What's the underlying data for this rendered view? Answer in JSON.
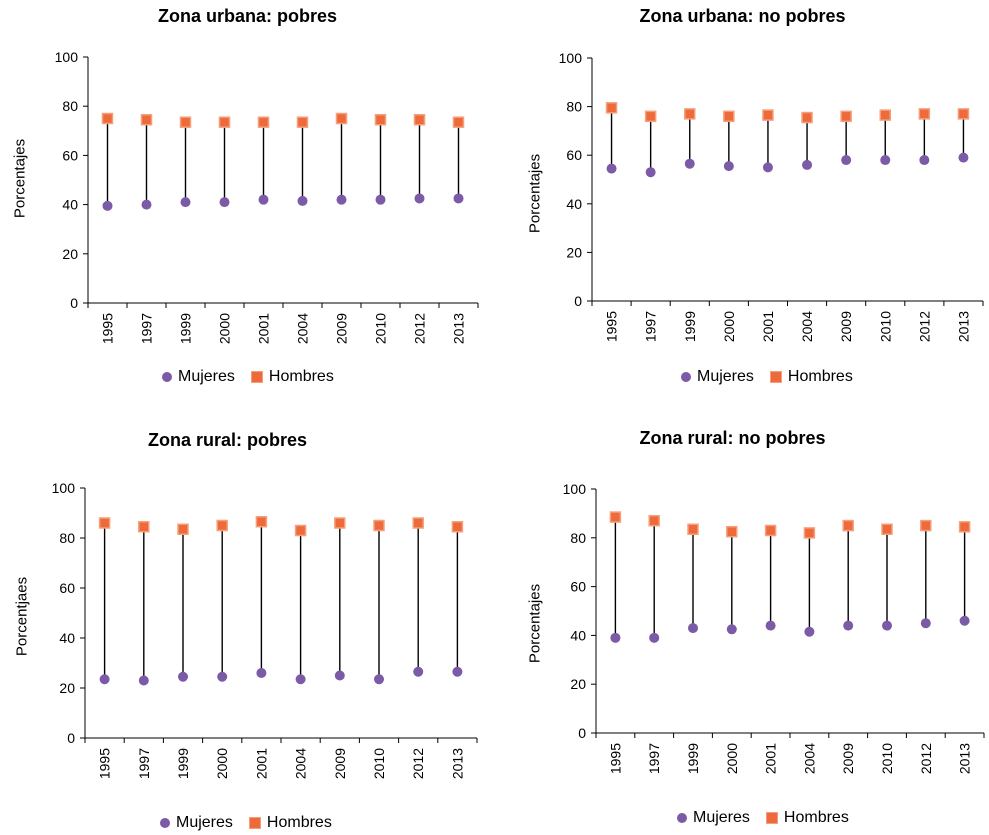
{
  "colors": {
    "mujeres": "#7b5aa6",
    "hombres": "#ef6a3a",
    "hombres_border": "#f5a07c",
    "axis": "#000000"
  },
  "chart_data": [
    {
      "type": "scatter",
      "title": "Zona urbana: pobres",
      "ylabel": "Porcentajes",
      "ylim": [
        0,
        100
      ],
      "yticks": [
        "0",
        "20",
        "40",
        "60",
        "80",
        "100"
      ],
      "categories": [
        "1995",
        "1997",
        "1999",
        "2000",
        "2001",
        "2004",
        "2009",
        "2010",
        "2012",
        "2013"
      ],
      "series": [
        {
          "name": "Mujeres",
          "values": [
            39.5,
            40,
            41,
            41,
            42,
            41.5,
            42,
            42,
            42.5,
            42.5
          ]
        },
        {
          "name": "Hombres",
          "values": [
            75,
            74.5,
            73.5,
            73.5,
            73.5,
            73.5,
            75,
            74.5,
            74.5,
            73.5
          ]
        }
      ],
      "legend_position": "bottom"
    },
    {
      "type": "scatter",
      "title": "Zona urbana: no pobres",
      "ylabel": "Porcentajes",
      "ylim": [
        0,
        100
      ],
      "yticks": [
        "0",
        "20",
        "40",
        "60",
        "80",
        "100"
      ],
      "categories": [
        "1995",
        "1997",
        "1999",
        "2000",
        "2001",
        "2004",
        "2009",
        "2010",
        "2012",
        "2013"
      ],
      "series": [
        {
          "name": "Mujeres",
          "values": [
            54.5,
            53,
            56.5,
            55.5,
            55,
            56,
            58,
            58,
            58,
            59
          ]
        },
        {
          "name": "Hombres",
          "values": [
            79.5,
            76,
            77,
            76,
            76.5,
            75.5,
            76,
            76.5,
            77,
            77
          ]
        }
      ],
      "legend_position": "bottom"
    },
    {
      "type": "scatter",
      "title": "Zona rural: pobres",
      "ylabel": "Porcentjaes",
      "ylim": [
        0,
        100
      ],
      "yticks": [
        "0",
        "20",
        "40",
        "60",
        "80",
        "100"
      ],
      "categories": [
        "1995",
        "1997",
        "1999",
        "2000",
        "2001",
        "2004",
        "2009",
        "2010",
        "2012",
        "2013"
      ],
      "series": [
        {
          "name": "Mujeres",
          "values": [
            23.5,
            23,
            24.5,
            24.5,
            26,
            23.5,
            25,
            23.5,
            26.5,
            26.5
          ]
        },
        {
          "name": "Hombres",
          "values": [
            86,
            84.5,
            83.5,
            85,
            86.5,
            83,
            86,
            85,
            86,
            84.5
          ]
        }
      ],
      "legend_position": "bottom"
    },
    {
      "type": "scatter",
      "title": "Zona rural: no pobres",
      "ylabel": "Porcentajes",
      "ylim": [
        0,
        100
      ],
      "yticks": [
        "0",
        "20",
        "40",
        "60",
        "80",
        "100"
      ],
      "categories": [
        "1995",
        "1997",
        "1999",
        "2000",
        "2001",
        "2004",
        "2009",
        "2010",
        "2012",
        "2013"
      ],
      "series": [
        {
          "name": "Mujeres",
          "values": [
            39,
            39,
            43,
            42.5,
            44,
            41.5,
            44,
            44,
            45,
            46
          ]
        },
        {
          "name": "Hombres",
          "values": [
            88.5,
            87,
            83.5,
            82.5,
            83,
            82,
            85,
            83.5,
            85,
            84.5
          ]
        }
      ],
      "legend_position": "bottom"
    }
  ]
}
